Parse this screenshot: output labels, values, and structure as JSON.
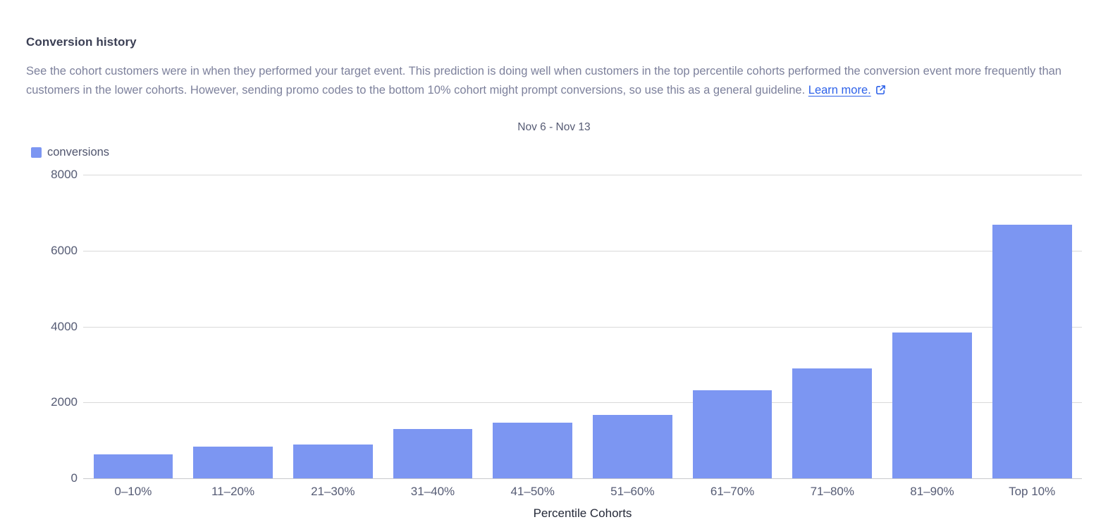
{
  "header": {
    "title": "Conversion history",
    "description": "See the cohort customers were in when they performed your target event. This prediction is doing well when customers in the top percentile cohorts performed the conversion event more frequently than customers in the lower cohorts. However, sending promo codes to the bottom 10% cohort might prompt conversions, so use this as a general guideline.",
    "learn_more_label": "Learn more.",
    "learn_more_icon": "external-link-icon"
  },
  "colors": {
    "bar": "#7C96F2",
    "link": "#2e62e9",
    "title_text": "#3b3f54",
    "body_text": "#7d819c",
    "tick_text": "#555b74",
    "gridline": "#d9d9d9"
  },
  "chart_data": {
    "type": "bar",
    "title": "Nov 6 - Nov 13",
    "categories": [
      "0–10%",
      "11–20%",
      "21–30%",
      "31–40%",
      "41–50%",
      "51–60%",
      "61–70%",
      "71–80%",
      "81–90%",
      "Top 10%"
    ],
    "series": [
      {
        "name": "conversions",
        "values": [
          630,
          830,
          900,
          1300,
          1460,
          1680,
          2320,
          2900,
          3840,
          6680
        ]
      }
    ],
    "xlabel": "Percentile Cohorts",
    "ylabel": "",
    "ylim": [
      0,
      8000
    ],
    "yticks": [
      0,
      2000,
      4000,
      6000,
      8000
    ],
    "grid": true,
    "legend_position": "top-left",
    "bar_color": "#7C96F2"
  }
}
